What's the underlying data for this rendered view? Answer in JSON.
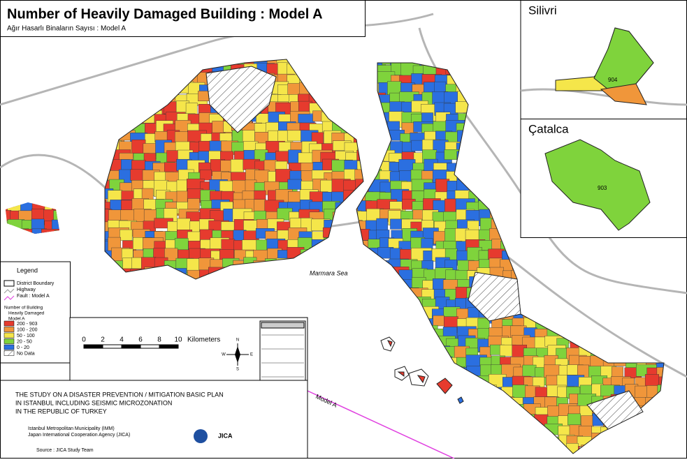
{
  "header": {
    "title": "Number of Heavily Damaged Building : Model A",
    "subtitle": "Ağır Hasarlı Binaların Sayısı : Model A"
  },
  "insets": [
    {
      "name": "Silivri",
      "label": "904"
    },
    {
      "name": "Çatalca",
      "label": "903"
    }
  ],
  "map": {
    "sea_label": "Marmara Sea",
    "fault_label": "Model A"
  },
  "legend": {
    "title": "Legend",
    "items": [
      {
        "label": "District Boundary"
      },
      {
        "label": "Highway"
      },
      {
        "label": "Fault : Model A"
      }
    ],
    "class_title": [
      "Number of Building",
      "Heavily Damaged",
      "Model A"
    ],
    "classes": [
      {
        "label": "200 - 903",
        "color": "#e63b2e"
      },
      {
        "label": "100 - 200",
        "color": "#f0963a"
      },
      {
        "label": "50 - 100",
        "color": "#f5e64a"
      },
      {
        "label": "20 - 50",
        "color": "#7fd33c"
      },
      {
        "label": "0 - 20",
        "color": "#2b6fe0"
      },
      {
        "label": "No Data"
      }
    ]
  },
  "scale": {
    "ticks": [
      0,
      2,
      4,
      6,
      8,
      10
    ],
    "unit": "Kilometers"
  },
  "compass": {
    "n": "N",
    "e": "E",
    "s": "S",
    "w": "W"
  },
  "footer": {
    "study": [
      "THE STUDY ON A DISASTER PREVENTION / MITIGATION BASIC PLAN",
      "IN ISTANBUL INCLUDING SEISMIC MICROZONATION",
      "IN THE REPUBLIC OF TURKEY"
    ],
    "organizations": [
      "Istanbul Metropolitan Municipality (IMM)",
      "Japan International Cooperation Agency (JICA)"
    ],
    "source": "Source : JICA Study Team",
    "logo": "JICA"
  }
}
